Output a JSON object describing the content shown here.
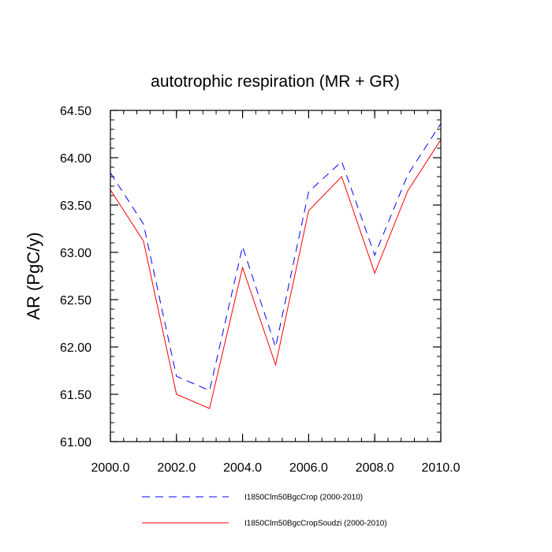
{
  "chart_data": {
    "type": "line",
    "title": "autotrophic respiration (MR + GR)",
    "ylabel": "AR  (PgC/y)",
    "xlabel": "",
    "xlim": [
      2000,
      2010
    ],
    "ylim": [
      61.0,
      64.5
    ],
    "x_ticks": [
      "2000.0",
      "2002.0",
      "2004.0",
      "2006.0",
      "2008.0",
      "2010.0"
    ],
    "x_tick_values": [
      2000,
      2002,
      2004,
      2006,
      2008,
      2010
    ],
    "y_ticks": [
      "61.00",
      "61.50",
      "62.00",
      "62.50",
      "63.00",
      "63.50",
      "64.00",
      "64.50"
    ],
    "y_tick_values": [
      61.0,
      61.5,
      62.0,
      62.5,
      63.0,
      63.5,
      64.0,
      64.5
    ],
    "x": [
      2000,
      2001,
      2002,
      2003,
      2004,
      2005,
      2006,
      2007,
      2008,
      2009,
      2010
    ],
    "series": [
      {
        "name": "I1850Clm50BgcCrop (2000-2010)",
        "color": "#0000ff",
        "dash": "dashed",
        "values": [
          63.84,
          63.3,
          61.69,
          61.54,
          63.06,
          62.0,
          63.64,
          63.96,
          62.97,
          63.82,
          64.36
        ]
      },
      {
        "name": "I1850Clm50BgcCropSoudzi (2000-2010)",
        "color": "#ff0000",
        "dash": "solid",
        "values": [
          63.66,
          63.12,
          61.5,
          61.35,
          62.84,
          61.81,
          63.44,
          63.8,
          62.78,
          63.65,
          64.19
        ]
      }
    ],
    "grid": false,
    "legend_position": "bottom"
  }
}
